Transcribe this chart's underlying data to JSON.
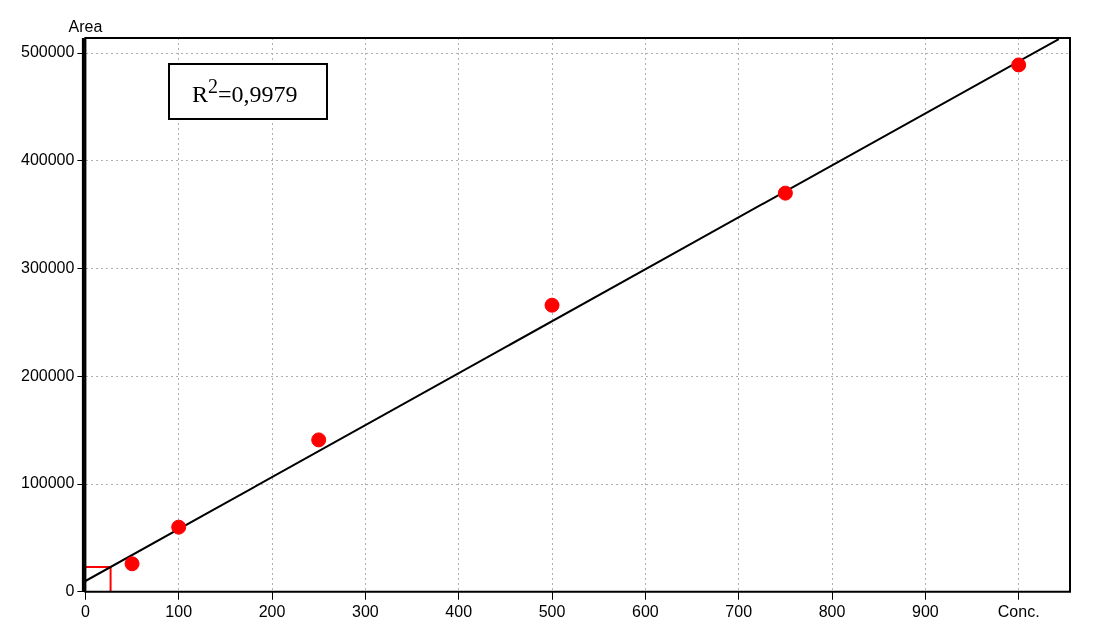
{
  "chart_data": {
    "type": "scatter",
    "ylabel": "Area",
    "annotations": [
      "R$^{2}$=0,9979"
    ],
    "x": [
      50,
      100,
      250,
      500,
      750,
      1000
    ],
    "series": [
      {
        "color": "#ff0000",
        "values": [
          26000,
          60000,
          141000,
          266000,
          370000,
          489000
        ]
      },
      {
        "type": "line",
        "color": "#000000",
        "x": [
          0,
          1043
        ],
        "values": [
          10000,
          513000
        ],
        "marker": "none"
      },
      {
        "type": "line",
        "color": "#ff0000",
        "x": [
          0,
          27,
          27
        ],
        "values": [
          23000,
          23000,
          0
        ],
        "marker": "none"
      }
    ],
    "xlim": [
      0,
      1055
    ],
    "xticks": [
      0,
      100,
      200,
      300,
      400,
      500,
      600,
      700,
      800,
      900,
      {
        "value": 1000,
        "label": "Conc."
      }
    ],
    "ylim": [
      0,
      514000
    ],
    "yticks": [
      0,
      100000,
      200000,
      300000,
      400000,
      500000
    ],
    "grid": true,
    "legend": false,
    "marker": "circle"
  }
}
